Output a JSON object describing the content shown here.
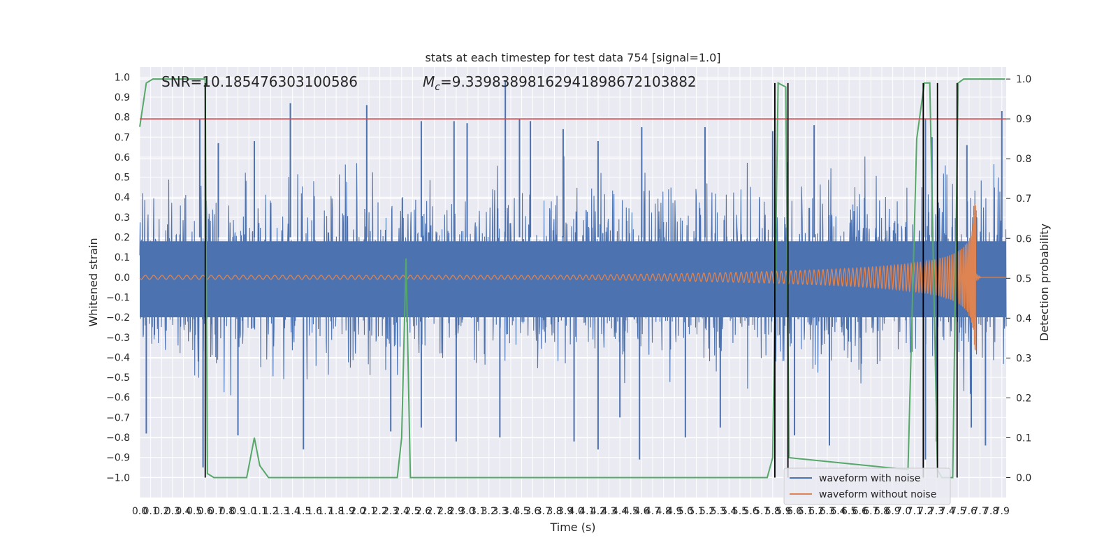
{
  "chart_data": {
    "type": "line",
    "title": "stats at each timestep for test data 754 [signal=1.0]",
    "xlabel": "Time (s)",
    "ylabel": "Whitened strain",
    "y2label": "Detection probability",
    "xlim": [
      0.0,
      7.94
    ],
    "ylim": [
      -1.1,
      1.05
    ],
    "y2lim": [
      -0.05,
      1.03
    ],
    "x_ticks": [
      "0.0",
      "0.1",
      "0.2",
      "0.3",
      "0.4",
      "0.5",
      "0.6",
      "0.7",
      "0.8",
      "0.9",
      "1.0",
      "1.1",
      "1.2",
      "1.3",
      "1.4",
      "1.5",
      "1.6",
      "1.7",
      "1.8",
      "1.9",
      "2.0",
      "2.1",
      "2.2",
      "2.3",
      "2.4",
      "2.5",
      "2.6",
      "2.7",
      "2.8",
      "2.9",
      "3.0",
      "3.1",
      "3.2",
      "3.3",
      "3.4",
      "3.5",
      "3.6",
      "3.7",
      "3.8",
      "3.9",
      "4.0",
      "4.1",
      "4.2",
      "4.3",
      "4.4",
      "4.5",
      "4.6",
      "4.7",
      "4.8",
      "4.9",
      "5.0",
      "5.1",
      "5.2",
      "5.3",
      "5.4",
      "5.5",
      "5.6",
      "5.7",
      "5.8",
      "5.9",
      "6.0",
      "6.1",
      "6.2",
      "6.3",
      "6.4",
      "6.5",
      "6.6",
      "6.7",
      "6.8",
      "6.9",
      "7.0",
      "7.1",
      "7.2",
      "7.3",
      "7.4",
      "7.5",
      "7.6",
      "7.7",
      "7.8",
      "7.9"
    ],
    "y_ticks": [
      "1.0",
      "0.9",
      "0.8",
      "0.7",
      "0.6",
      "0.5",
      "0.4",
      "0.3",
      "0.2",
      "0.1",
      "0.0",
      "−0.1",
      "−0.2",
      "−0.3",
      "−0.4",
      "−0.5",
      "−0.6",
      "−0.7",
      "−0.8",
      "−0.9",
      "−1.0"
    ],
    "y2_ticks": [
      "1.0",
      "0.9",
      "0.8",
      "0.7",
      "0.6",
      "0.5",
      "0.4",
      "0.3",
      "0.2",
      "0.1",
      "0.0"
    ],
    "annotations": {
      "snr": "SNR=10.185476303100586",
      "mc_prefix": "M",
      "mc_sub": "c",
      "mc_value": "=9.33983898162941898672103882"
    },
    "threshold": {
      "y2": 0.9,
      "color": "#c44e52"
    },
    "detection_markers_x": [
      0.6,
      5.82,
      5.94,
      7.18,
      7.31,
      7.49
    ],
    "detection_probability": {
      "name": "detection probability",
      "color": "#55a868",
      "x": [
        0.0,
        0.06,
        0.12,
        0.18,
        0.6,
        0.62,
        0.68,
        0.72,
        0.98,
        1.05,
        1.1,
        1.18,
        2.28,
        2.36,
        2.4,
        2.44,
        2.48,
        5.75,
        5.8,
        5.85,
        5.92,
        5.95,
        7.04,
        7.12,
        7.19,
        7.24,
        7.31,
        7.35,
        7.42,
        7.45,
        7.5,
        7.55,
        7.65,
        7.93
      ],
      "y": [
        0.88,
        0.99,
        1.0,
        1.0,
        1.0,
        0.01,
        0.0,
        0.0,
        0.0,
        0.1,
        0.03,
        0.0,
        0.0,
        0.0,
        0.1,
        0.55,
        0.0,
        0.0,
        0.05,
        0.99,
        0.98,
        0.05,
        0.02,
        0.85,
        0.99,
        0.99,
        0.02,
        0.0,
        0.0,
        0.0,
        0.99,
        1.0,
        1.0,
        1.0
      ]
    },
    "noise_spikes": {
      "up_x": [
        0.55,
        0.72,
        1.05,
        1.38,
        2.08,
        2.58,
        2.88,
        3.0,
        3.35,
        3.48,
        3.58,
        3.88,
        4.2,
        4.6,
        5.18,
        5.8,
        6.18,
        7.2,
        7.26,
        7.58,
        7.9
      ],
      "up_y": [
        0.79,
        0.67,
        0.68,
        0.87,
        0.86,
        0.78,
        0.78,
        0.77,
        0.98,
        0.79,
        0.78,
        0.74,
        0.68,
        0.75,
        0.75,
        0.73,
        0.76,
        0.79,
        0.7,
        0.66,
        0.83
      ],
      "down_x": [
        0.06,
        0.58,
        0.9,
        1.5,
        2.3,
        2.58,
        2.9,
        3.3,
        3.98,
        4.2,
        4.4,
        4.58,
        5.0,
        5.32,
        6.0,
        6.32,
        7.2,
        7.3,
        7.62,
        7.75
      ],
      "down_y": [
        -0.78,
        -0.95,
        -0.79,
        -0.86,
        -0.77,
        -0.75,
        -0.82,
        -0.8,
        -0.82,
        -0.86,
        -0.7,
        -0.91,
        -0.8,
        -0.75,
        -0.79,
        -0.84,
        -0.91,
        -0.82,
        -0.75,
        -0.84
      ]
    },
    "series": [
      {
        "name": "waveform with noise",
        "color": "#4c72b0"
      },
      {
        "name": "waveform without noise",
        "color": "#dd8452"
      }
    ]
  }
}
